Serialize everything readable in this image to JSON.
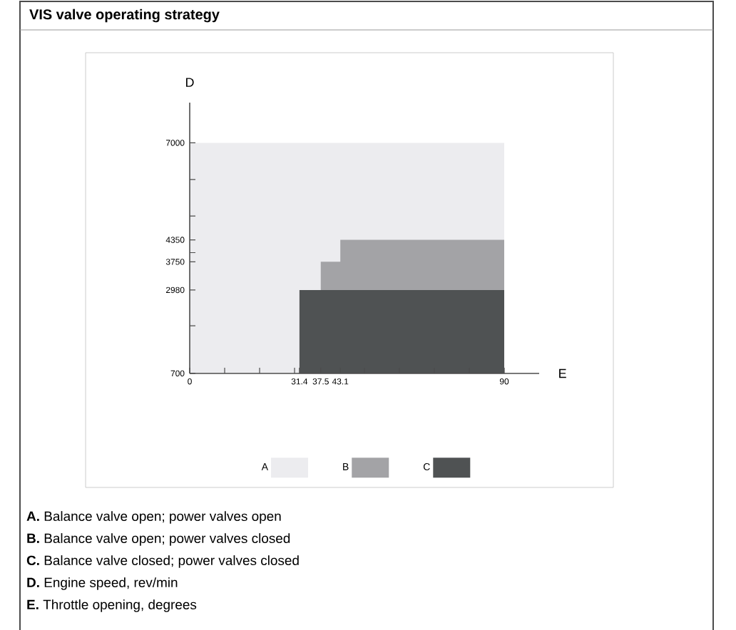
{
  "chart_data": {
    "type": "area",
    "title": "VIS valve operating strategy",
    "xlabel": "E",
    "ylabel": "D",
    "xlim": [
      0,
      100
    ],
    "ylim": [
      700,
      8100
    ],
    "xticks": [
      0,
      {
        "value": 10,
        "label": null
      },
      {
        "value": 20,
        "label": null
      },
      {
        "value": 30,
        "label": null
      },
      31.4,
      37.5,
      43.1,
      {
        "value": 50,
        "label": null
      },
      {
        "value": 60,
        "label": null
      },
      {
        "value": 70,
        "label": null
      },
      {
        "value": 80,
        "label": null
      },
      90
    ],
    "yticks": [
      700,
      {
        "value": 2000,
        "label": null
      },
      2980,
      3750,
      {
        "value": 4000,
        "label": null
      },
      4350,
      {
        "value": 5000,
        "label": null
      },
      {
        "value": 6000,
        "label": null
      },
      7000
    ],
    "series": [
      {
        "name": "A",
        "color": "#ececef",
        "x": [
          0,
          90
        ],
        "values": [
          7000,
          7000
        ]
      },
      {
        "name": "B",
        "color": "#a3a3a6",
        "x": [
          37.5,
          43.1,
          43.1,
          90
        ],
        "values": [
          3750,
          3750,
          4350,
          4350
        ]
      },
      {
        "name": "C",
        "color": "#4f5253",
        "x": [
          31.4,
          90
        ],
        "values": [
          2980,
          2980
        ]
      }
    ],
    "legend": "bottom",
    "annotations": [
      "**A.** Balance valve open; power valves open",
      "**B.** Balance valve open; power valves closed",
      "**C.** Balance valve closed; power valves closed",
      "**D.** Engine speed, rev/min",
      "**E.** Throttle opening, degrees"
    ]
  }
}
